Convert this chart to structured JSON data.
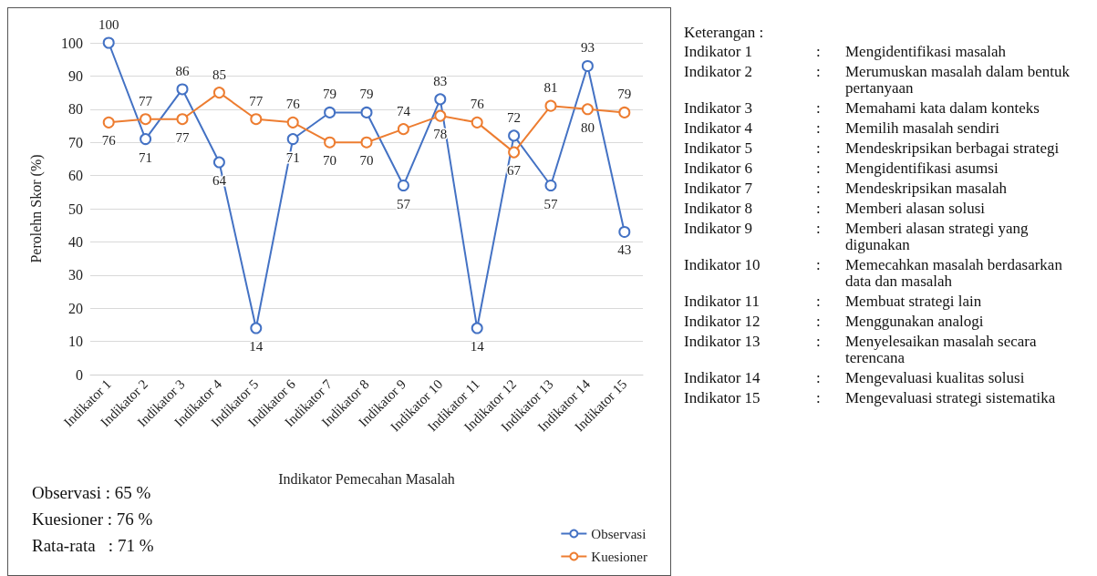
{
  "chart_data": {
    "type": "line",
    "xlabel": "Indikator Pemecahan Masalah",
    "ylabel": "Perolehn Skor (%)",
    "categories": [
      "Indikator 1",
      "Indikator 2",
      "Indikator 3",
      "Indikator 4",
      "Indikator 5",
      "Indikator 6",
      "Indikator 7",
      "Indikator 8",
      "Indikator 9",
      "Indikator 10",
      "Indikator 11",
      "Indikator 12",
      "Indikator 13",
      "Indikator 14",
      "Indikator 15"
    ],
    "series": [
      {
        "name": "Observasi",
        "color": "#4472c4",
        "values": [
          100,
          71,
          86,
          64,
          14,
          71,
          79,
          79,
          57,
          83,
          14,
          72,
          57,
          93,
          43
        ]
      },
      {
        "name": "Kuesioner",
        "color": "#ed7d31",
        "values": [
          76,
          77,
          77,
          85,
          77,
          76,
          70,
          70,
          74,
          78,
          76,
          67,
          81,
          80,
          79
        ]
      }
    ],
    "ylim": [
      0,
      100
    ],
    "yticks": [
      0,
      10,
      20,
      30,
      40,
      50,
      60,
      70,
      80,
      90,
      100
    ],
    "grid": "y",
    "legend": "bottom right",
    "marker": "circle",
    "line_style": "solid",
    "data_labels": true,
    "annotations": [
      "Observasi : 65 %",
      "Kuesioner : 76 %",
      "Rata-rata   : 71 %",
      "Keterangan :",
      "Indikator 1 : Mengidentifikasi masalah",
      "Indikator 2 : Merumuskan masalah dalam bentuk pertanyaan",
      "Indikator 3 : Memahami kata dalam konteks",
      "Indikator 4 : Memilih masalah sendiri",
      "Indikator 5 : Mendeskripsikan berbagai strategi",
      "Indikator 6 : Mengidentifikasi asumsi",
      "Indikator 7 : Mendeskripsikan masalah",
      "Indikator 8 : Memberi alasan solusi",
      "Indikator 9 : Memberi alasan strategi yang digunakan",
      "Indikator 10 : Memecahkan masalah berdasarkan data dan masalah",
      "Indikator 11 : Membuat strategi lain",
      "Indikator 12 : Menggunakan analogi",
      "Indikator 13 : Menyelesaikan masalah secara terencana",
      "Indikator 14 : Mengevaluasi kualitas solusi",
      "Indikator 15 : Mengevaluasi strategi sistematika"
    ]
  }
}
